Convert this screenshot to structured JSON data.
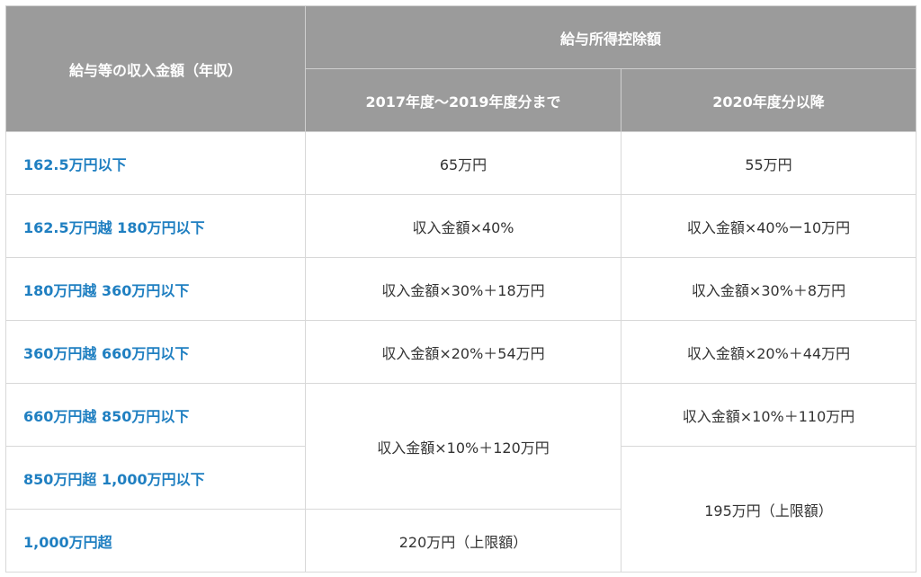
{
  "header": {
    "income_label": "給与等の収入金額（年収）",
    "deduction_label": "給与所得控除額",
    "period_2017_2019": "2017年度〜2019年度分まで",
    "period_2020": "2020年度分以降"
  },
  "rows": [
    {
      "income": "162.5万円以下",
      "old": "65万円",
      "new": "55万円"
    },
    {
      "income": "162.5万円越 180万円以下",
      "old": "収入金額×40%",
      "new": "収入金額×40%ー10万円"
    },
    {
      "income": "180万円越 360万円以下",
      "old": "収入金額×30%＋18万円",
      "new": "収入金額×30%＋8万円"
    },
    {
      "income": "360万円越 660万円以下",
      "old": "収入金額×20%＋54万円",
      "new": "収入金額×20%＋44万円"
    },
    {
      "income": "660万円越 850万円以下",
      "old": "収入金額×10%＋120万円",
      "new": "収入金額×10%＋110万円"
    },
    {
      "income": "850万円超 1,000万円以下",
      "new": "195万円（上限額）"
    },
    {
      "income": "1,000万円超",
      "old": "220万円（上限額）"
    }
  ],
  "colors": {
    "header_bg": "#9b9b9b",
    "header_text": "#ffffff",
    "income_text": "#1f7fc1",
    "body_text": "#333333",
    "border": "#d8d8d8"
  }
}
